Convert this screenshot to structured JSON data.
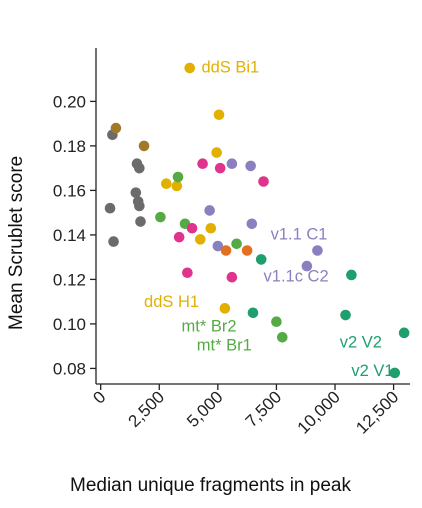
{
  "chart_data": {
    "type": "scatter",
    "xlabel": "Median unique fragments in peak",
    "ylabel": "Mean Scrublet score",
    "xlim": [
      -200,
      13200
    ],
    "ylim": [
      0.073,
      0.224
    ],
    "xticks": [
      0,
      2500,
      5000,
      7500,
      10000,
      12500
    ],
    "xtick_labels": [
      "0",
      "2,500",
      "5,000",
      "7,500",
      "10,000",
      "12,500"
    ],
    "yticks": [
      0.08,
      0.1,
      0.12,
      0.14,
      0.16,
      0.18,
      0.2
    ],
    "ytick_labels": [
      "0.08",
      "0.10",
      "0.12",
      "0.14",
      "0.16",
      "0.18",
      "0.20"
    ],
    "grid": false,
    "points": [
      {
        "x": 500,
        "y": 0.185,
        "color": "#6b6b6b"
      },
      {
        "x": 400,
        "y": 0.152,
        "color": "#6b6b6b"
      },
      {
        "x": 550,
        "y": 0.137,
        "color": "#6b6b6b"
      },
      {
        "x": 1550,
        "y": 0.172,
        "color": "#6b6b6b"
      },
      {
        "x": 1650,
        "y": 0.17,
        "color": "#6b6b6b"
      },
      {
        "x": 1500,
        "y": 0.159,
        "color": "#6b6b6b"
      },
      {
        "x": 1600,
        "y": 0.155,
        "color": "#6b6b6b"
      },
      {
        "x": 1650,
        "y": 0.153,
        "color": "#6b6b6b"
      },
      {
        "x": 1700,
        "y": 0.146,
        "color": "#6b6b6b"
      },
      {
        "x": 650,
        "y": 0.188,
        "color": "#a07a28"
      },
      {
        "x": 1850,
        "y": 0.18,
        "color": "#a07a28"
      },
      {
        "x": 3800,
        "y": 0.215,
        "color": "#e2b000"
      },
      {
        "x": 5050,
        "y": 0.194,
        "color": "#e2b000"
      },
      {
        "x": 4950,
        "y": 0.177,
        "color": "#e2b000"
      },
      {
        "x": 2800,
        "y": 0.163,
        "color": "#e2b000"
      },
      {
        "x": 3250,
        "y": 0.162,
        "color": "#e2b000"
      },
      {
        "x": 4250,
        "y": 0.138,
        "color": "#e2b000"
      },
      {
        "x": 4700,
        "y": 0.143,
        "color": "#e2b000"
      },
      {
        "x": 5300,
        "y": 0.107,
        "color": "#e2b000"
      },
      {
        "x": 3300,
        "y": 0.166,
        "color": "#56aa46"
      },
      {
        "x": 2550,
        "y": 0.148,
        "color": "#56aa46"
      },
      {
        "x": 3600,
        "y": 0.145,
        "color": "#56aa46"
      },
      {
        "x": 5800,
        "y": 0.136,
        "color": "#56aa46"
      },
      {
        "x": 7500,
        "y": 0.101,
        "color": "#56aa46"
      },
      {
        "x": 7750,
        "y": 0.094,
        "color": "#56aa46"
      },
      {
        "x": 4350,
        "y": 0.172,
        "color": "#e0338d"
      },
      {
        "x": 5100,
        "y": 0.17,
        "color": "#e0338d"
      },
      {
        "x": 6950,
        "y": 0.164,
        "color": "#e0338d"
      },
      {
        "x": 3900,
        "y": 0.143,
        "color": "#e0338d"
      },
      {
        "x": 3350,
        "y": 0.139,
        "color": "#e0338d"
      },
      {
        "x": 3700,
        "y": 0.123,
        "color": "#e0338d"
      },
      {
        "x": 5600,
        "y": 0.121,
        "color": "#e0338d"
      },
      {
        "x": 5600,
        "y": 0.172,
        "color": "#8a80c0"
      },
      {
        "x": 6400,
        "y": 0.171,
        "color": "#8a80c0"
      },
      {
        "x": 4650,
        "y": 0.151,
        "color": "#8a80c0"
      },
      {
        "x": 6450,
        "y": 0.145,
        "color": "#8a80c0"
      },
      {
        "x": 5000,
        "y": 0.135,
        "color": "#8a80c0"
      },
      {
        "x": 9250,
        "y": 0.133,
        "color": "#8a80c0"
      },
      {
        "x": 8800,
        "y": 0.126,
        "color": "#8a80c0"
      },
      {
        "x": 5350,
        "y": 0.133,
        "color": "#e36f23"
      },
      {
        "x": 6250,
        "y": 0.133,
        "color": "#e36f23"
      },
      {
        "x": 6850,
        "y": 0.129,
        "color": "#1f9e6e"
      },
      {
        "x": 6500,
        "y": 0.105,
        "color": "#1f9e6e"
      },
      {
        "x": 10700,
        "y": 0.122,
        "color": "#1f9e6e"
      },
      {
        "x": 10450,
        "y": 0.104,
        "color": "#1f9e6e"
      },
      {
        "x": 12950,
        "y": 0.096,
        "color": "#1f9e6e"
      },
      {
        "x": 12550,
        "y": 0.078,
        "color": "#1f9e6e"
      }
    ],
    "annotations": [
      {
        "text": "ddS Bi1",
        "x": 4300,
        "y": 0.213,
        "color": "#e2b000"
      },
      {
        "text": "v1.1 C1",
        "x": 7250,
        "y": 0.138,
        "color": "#8a80c0"
      },
      {
        "text": "v1.1c C2",
        "x": 6950,
        "y": 0.119,
        "color": "#8a80c0"
      },
      {
        "text": "ddS H1",
        "x": 1850,
        "y": 0.1075,
        "color": "#e2b000"
      },
      {
        "text": "mt* Br2",
        "x": 3450,
        "y": 0.0965,
        "color": "#56aa46"
      },
      {
        "text": "mt* Br1",
        "x": 4100,
        "y": 0.088,
        "color": "#56aa46"
      },
      {
        "text": "v2 V2",
        "x": 10200,
        "y": 0.0895,
        "color": "#1f9e6e"
      },
      {
        "text": "v2 V1",
        "x": 10700,
        "y": 0.0765,
        "color": "#1f9e6e"
      }
    ]
  }
}
